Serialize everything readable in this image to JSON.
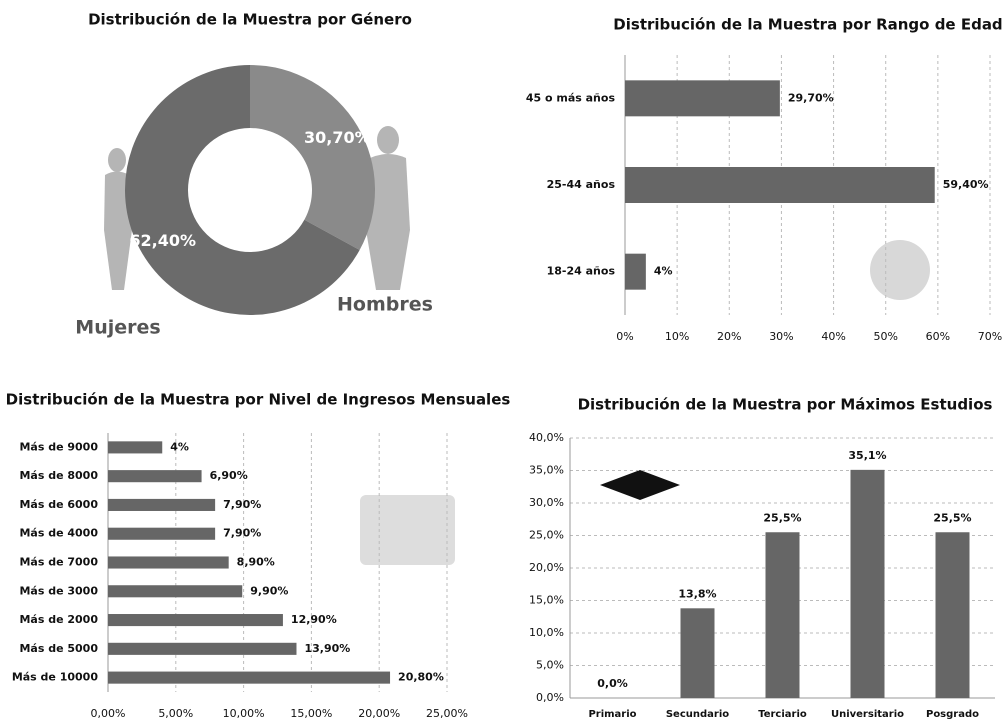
{
  "chart_data": [
    {
      "type": "pie",
      "title": "Distribución de la Muestra por Género",
      "categories": [
        "Hombres",
        "Mujeres"
      ],
      "values": [
        30.7,
        62.4
      ],
      "value_labels": [
        "30,70%",
        "62,40%"
      ],
      "colors": [
        "#8a8a8a",
        "#6b6b6b"
      ],
      "donut": true
    },
    {
      "type": "bar",
      "orientation": "horizontal",
      "title": "Distribución de la Muestra por Rango de Edad",
      "categories": [
        "45 o más años",
        "25-44 años",
        "18-24 años"
      ],
      "values": [
        29.7,
        59.4,
        4
      ],
      "value_labels": [
        "29,70%",
        "59,40%",
        "4%"
      ],
      "color": "#666666",
      "xlim": [
        0,
        70
      ],
      "xticks": [
        {
          "value": 0,
          "label": "0%"
        },
        {
          "value": 10,
          "label": "10%"
        },
        {
          "value": 20,
          "label": "20%"
        },
        {
          "value": 30,
          "label": "30%"
        },
        {
          "value": 40,
          "label": "40%"
        },
        {
          "value": 50,
          "label": "50%"
        },
        {
          "value": 60,
          "label": "60%"
        },
        {
          "value": 70,
          "label": "70%"
        }
      ],
      "grid": true
    },
    {
      "type": "bar",
      "orientation": "horizontal",
      "title": "Distribución de la Muestra por Nivel de Ingresos Mensuales",
      "categories": [
        "Más de 9000",
        "Más de 8000",
        "Más de 6000",
        "Más de 4000",
        "Más de 7000",
        "Más de 3000",
        "Más de 2000",
        "Más de 5000",
        "Más de 10000"
      ],
      "values": [
        4,
        6.9,
        7.9,
        7.9,
        8.9,
        9.9,
        12.9,
        13.9,
        20.8
      ],
      "value_labels": [
        "4%",
        "6,90%",
        "7,90%",
        "7,90%",
        "8,90%",
        "9,90%",
        "12,90%",
        "13,90%",
        "20,80%"
      ],
      "color": "#666666",
      "xlim": [
        0,
        25
      ],
      "xticks": [
        {
          "value": 0,
          "label": "0,00%"
        },
        {
          "value": 5,
          "label": "5,00%"
        },
        {
          "value": 10,
          "label": "10,00%"
        },
        {
          "value": 15,
          "label": "15,00%"
        },
        {
          "value": 20,
          "label": "20,00%"
        },
        {
          "value": 25,
          "label": "25,00%"
        }
      ],
      "grid": true
    },
    {
      "type": "bar",
      "orientation": "vertical",
      "title": "Distribución de la Muestra por Máximos Estudios",
      "categories": [
        "Primario",
        "Secundario",
        "Terciario",
        "Universitario",
        "Posgrado"
      ],
      "values": [
        0,
        13.8,
        25.5,
        35.1,
        25.5
      ],
      "value_labels": [
        "0,0%",
        "13,8%",
        "25,5%",
        "35,1%",
        "25,5%"
      ],
      "color": "#666666",
      "ylim": [
        0,
        40
      ],
      "yticks": [
        {
          "value": 0,
          "label": "0,0%"
        },
        {
          "value": 5,
          "label": "5,0%"
        },
        {
          "value": 10,
          "label": "10,0%"
        },
        {
          "value": 15,
          "label": "15,0%"
        },
        {
          "value": 20,
          "label": "20,0%"
        },
        {
          "value": 25,
          "label": "25,0%"
        },
        {
          "value": 30,
          "label": "30,0%"
        },
        {
          "value": 35,
          "label": "35,0%"
        },
        {
          "value": 40,
          "label": "40,0%"
        }
      ],
      "grid": true
    }
  ]
}
